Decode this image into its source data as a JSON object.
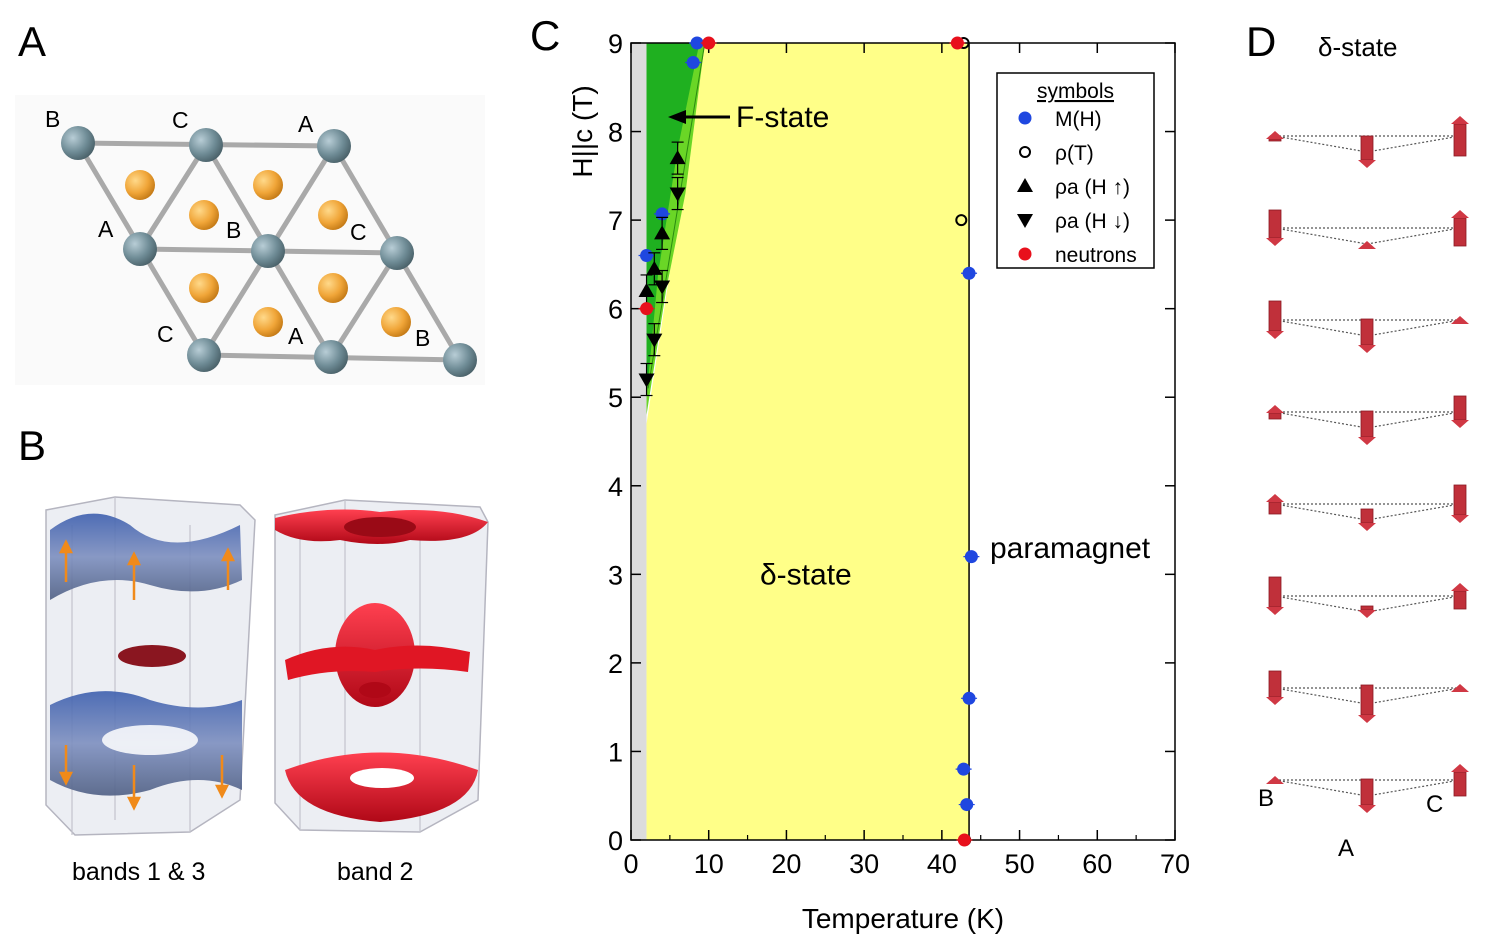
{
  "panels": {
    "a": {
      "letter": "A",
      "labels": {
        "b_top": "B",
        "c_top": "C",
        "a_top": "A",
        "a_mid": "A",
        "b_mid": "B",
        "c_mid": "C",
        "c_bot": "C",
        "a_bot": "A",
        "b_bot": "B"
      }
    },
    "b": {
      "letter": "B",
      "captions": {
        "left": "bands 1 & 3",
        "right": "band 2"
      }
    },
    "c": {
      "letter": "C"
    },
    "d": {
      "letter": "D",
      "title": "δ-state",
      "labels": {
        "b": "B",
        "c": "C",
        "a": "A"
      },
      "arrow_sets": [
        [
          "up",
          "down",
          "up"
        ],
        [
          "down",
          "up",
          "up"
        ],
        [
          "down",
          "down",
          "up"
        ],
        [
          "up",
          "down",
          "down"
        ],
        [
          "up",
          "down",
          "down"
        ],
        [
          "down",
          "down",
          "up"
        ],
        [
          "down",
          "down",
          "up"
        ],
        [
          "up",
          "down",
          "up"
        ]
      ]
    }
  },
  "chart_data": {
    "type": "scatter",
    "xlabel": "Temperature (K)",
    "ylabel": "H||c (T)",
    "xlim": [
      0,
      70
    ],
    "ylim": [
      0,
      9
    ],
    "xticks": [
      0,
      10,
      20,
      30,
      40,
      50,
      60,
      70
    ],
    "yticks": [
      0,
      1,
      2,
      3,
      4,
      5,
      6,
      7,
      8,
      9
    ],
    "regions": {
      "f_state": "F-state",
      "delta_state": "δ-state",
      "paramagnet": "paramagnet"
    },
    "legend_title": "symbols",
    "legend": [
      {
        "label": "M(H)",
        "marker": "circle",
        "color": "#1f47e0"
      },
      {
        "label": "ρ(T)",
        "marker": "open-circle",
        "color": "#000000"
      },
      {
        "label": "ρa (H ↑)",
        "marker": "triangle-up",
        "color": "#000000"
      },
      {
        "label": "ρa (H ↓)",
        "marker": "triangle-down",
        "color": "#000000"
      },
      {
        "label": "neutrons",
        "marker": "circle",
        "color": "#e8101c"
      }
    ],
    "series": [
      {
        "name": "M(H)",
        "points": [
          [
            8.5,
            9.0
          ],
          [
            8.0,
            8.78
          ],
          [
            4.0,
            7.07
          ],
          [
            2.0,
            6.6
          ],
          [
            43.5,
            6.4
          ],
          [
            43.8,
            3.2
          ],
          [
            43.5,
            1.6
          ],
          [
            42.8,
            0.8
          ],
          [
            43.2,
            0.4
          ]
        ]
      },
      {
        "name": "ρ(T)",
        "points": [
          [
            42.8,
            9.0
          ],
          [
            42.5,
            7.0
          ],
          [
            43.0,
            0.0
          ]
        ]
      },
      {
        "name": "ρa (H ↑)",
        "points": [
          [
            2.0,
            6.2
          ],
          [
            3.0,
            6.45
          ],
          [
            4.0,
            6.85
          ],
          [
            6.0,
            7.7
          ]
        ]
      },
      {
        "name": "ρa (H ↓)",
        "points": [
          [
            2.0,
            5.2
          ],
          [
            3.0,
            5.65
          ],
          [
            4.0,
            6.25
          ],
          [
            6.0,
            7.3
          ]
        ]
      },
      {
        "name": "neutrons",
        "points": [
          [
            10.0,
            9.0
          ],
          [
            42.0,
            9.0
          ],
          [
            2.0,
            6.0
          ],
          [
            42.9,
            0.0
          ]
        ]
      }
    ]
  }
}
